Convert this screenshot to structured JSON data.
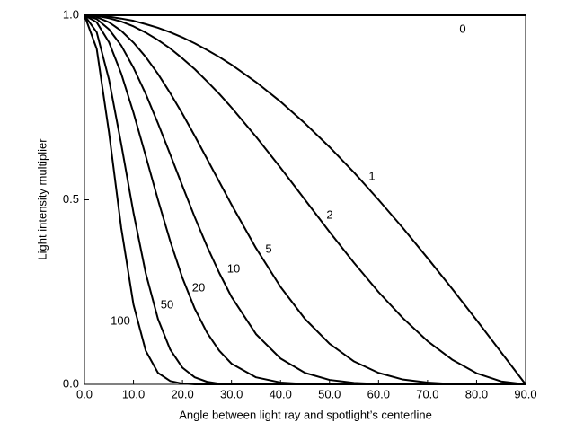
{
  "chart_data": {
    "type": "line",
    "x_label": "Angle between light ray and spotlight’s centerline",
    "y_label": "Light intensity multiplier",
    "x": [
      0,
      2.5,
      5,
      7.5,
      10,
      12.5,
      15,
      17.5,
      20,
      22.5,
      25,
      27.5,
      30,
      35,
      40,
      45,
      50,
      55,
      60,
      65,
      70,
      75,
      80,
      85,
      90
    ],
    "series": [
      {
        "name": "0",
        "color": "#000000",
        "values": [
          1,
          1,
          1,
          1,
          1,
          1,
          1,
          1,
          1,
          1,
          1,
          1,
          1,
          1,
          1,
          1,
          1,
          1,
          1,
          1,
          1,
          1,
          1,
          1,
          1
        ]
      },
      {
        "name": "1",
        "color": "#000000",
        "values": [
          1,
          0.999,
          0.996,
          0.991,
          0.985,
          0.976,
          0.966,
          0.954,
          0.94,
          0.924,
          0.906,
          0.887,
          0.866,
          0.819,
          0.766,
          0.707,
          0.643,
          0.574,
          0.5,
          0.423,
          0.342,
          0.259,
          0.174,
          0.087,
          0
        ]
      },
      {
        "name": "2",
        "color": "#000000",
        "values": [
          1,
          0.998,
          0.992,
          0.983,
          0.97,
          0.953,
          0.933,
          0.91,
          0.883,
          0.854,
          0.821,
          0.787,
          0.75,
          0.671,
          0.587,
          0.5,
          0.413,
          0.329,
          0.25,
          0.179,
          0.117,
          0.067,
          0.03,
          0.008,
          0
        ]
      },
      {
        "name": "5",
        "color": "#000000",
        "values": [
          1,
          0.995,
          0.981,
          0.958,
          0.926,
          0.887,
          0.841,
          0.789,
          0.733,
          0.673,
          0.611,
          0.549,
          0.487,
          0.369,
          0.264,
          0.177,
          0.11,
          0.062,
          0.031,
          0.013,
          0.005,
          0.001,
          0,
          0,
          0
        ]
      },
      {
        "name": "10",
        "color": "#000000",
        "values": [
          1,
          0.99,
          0.962,
          0.918,
          0.858,
          0.787,
          0.707,
          0.623,
          0.537,
          0.453,
          0.374,
          0.302,
          0.237,
          0.136,
          0.07,
          0.031,
          0.012,
          0.004,
          0.001,
          0,
          0,
          0,
          0,
          0,
          0
        ]
      },
      {
        "name": "20",
        "color": "#000000",
        "values": [
          1,
          0.981,
          0.927,
          0.842,
          0.736,
          0.619,
          0.5,
          0.388,
          0.288,
          0.205,
          0.14,
          0.091,
          0.056,
          0.019,
          0.005,
          0.001,
          0,
          0,
          0,
          0,
          0,
          0,
          0,
          0,
          0
        ]
      },
      {
        "name": "50",
        "color": "#000000",
        "values": [
          1,
          0.954,
          0.826,
          0.651,
          0.465,
          0.301,
          0.177,
          0.094,
          0.045,
          0.019,
          0.007,
          0.002,
          0.001,
          0,
          0,
          0,
          0,
          0,
          0,
          0,
          0,
          0,
          0,
          0,
          0
        ]
      },
      {
        "name": "100",
        "color": "#000000",
        "values": [
          1,
          0.909,
          0.683,
          0.424,
          0.216,
          0.091,
          0.031,
          0.009,
          0.002,
          0,
          0,
          0,
          0,
          0,
          0,
          0,
          0,
          0,
          0,
          0,
          0,
          0,
          0,
          0,
          0
        ]
      }
    ],
    "xlim": [
      0,
      90
    ],
    "xticks": [
      {
        "value": 0,
        "label": "0.0"
      },
      {
        "value": 10,
        "label": "10.0"
      },
      {
        "value": 20,
        "label": "20.0"
      },
      {
        "value": 30,
        "label": "30.0"
      },
      {
        "value": 40,
        "label": "40.0"
      },
      {
        "value": 50,
        "label": "50.0"
      },
      {
        "value": 60,
        "label": "60.0"
      },
      {
        "value": 70,
        "label": "70.0"
      },
      {
        "value": 80,
        "label": "80.0"
      },
      {
        "value": 90,
        "label": "90.0"
      }
    ],
    "ylim": [
      0,
      1
    ],
    "yticks": [
      {
        "value": 0,
        "label": "0.0"
      },
      {
        "value": 0.5,
        "label": "0.5"
      },
      {
        "value": 1,
        "label": "1.0"
      }
    ],
    "grid": false
  }
}
